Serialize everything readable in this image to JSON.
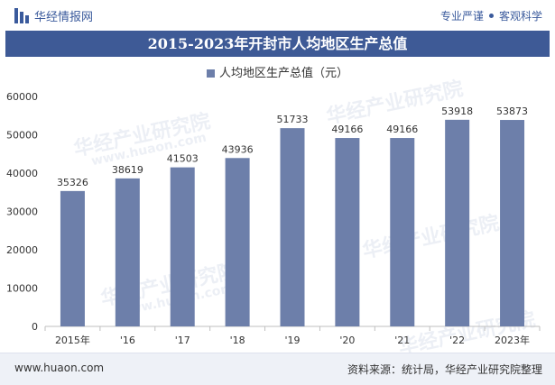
{
  "header": {
    "brand": "华经情报网",
    "slogan_left": "专业严谨",
    "slogan_right": "客观科学"
  },
  "title": "2015-2023年开封市人均地区生产总值",
  "legend": {
    "label": "人均地区生产总值（元）",
    "color": "#6d7faa"
  },
  "watermark": {
    "name": "华经产业研究院",
    "url": "www.huaon.com"
  },
  "footer": {
    "url": "www.huaon.com",
    "source": "资料来源：统计局，华经产业研究院整理"
  },
  "colors": {
    "title_bg": "#3e5a96",
    "bar": "#6d7faa",
    "brand": "#3a5a9c",
    "footer_bg": "#eef1f7"
  },
  "chart_data": {
    "type": "bar",
    "categories": [
      "2015年",
      "'16",
      "'17",
      "'18",
      "'19",
      "'20",
      "'21",
      "'22",
      "2023年"
    ],
    "series": [
      {
        "name": "人均地区生产总值（元）",
        "values": [
          35326,
          38619,
          41503,
          43936,
          51733,
          49166,
          49166,
          53918,
          53873
        ]
      }
    ],
    "data_labels": [
      "35326",
      "38619",
      "41503",
      "43936",
      "51733",
      "49166",
      "49166",
      "53918",
      "53873"
    ],
    "y_ticks": [
      0,
      10000,
      20000,
      30000,
      40000,
      50000,
      60000
    ],
    "ylim": [
      0,
      60000
    ],
    "grid": false,
    "legend_position": "top"
  }
}
